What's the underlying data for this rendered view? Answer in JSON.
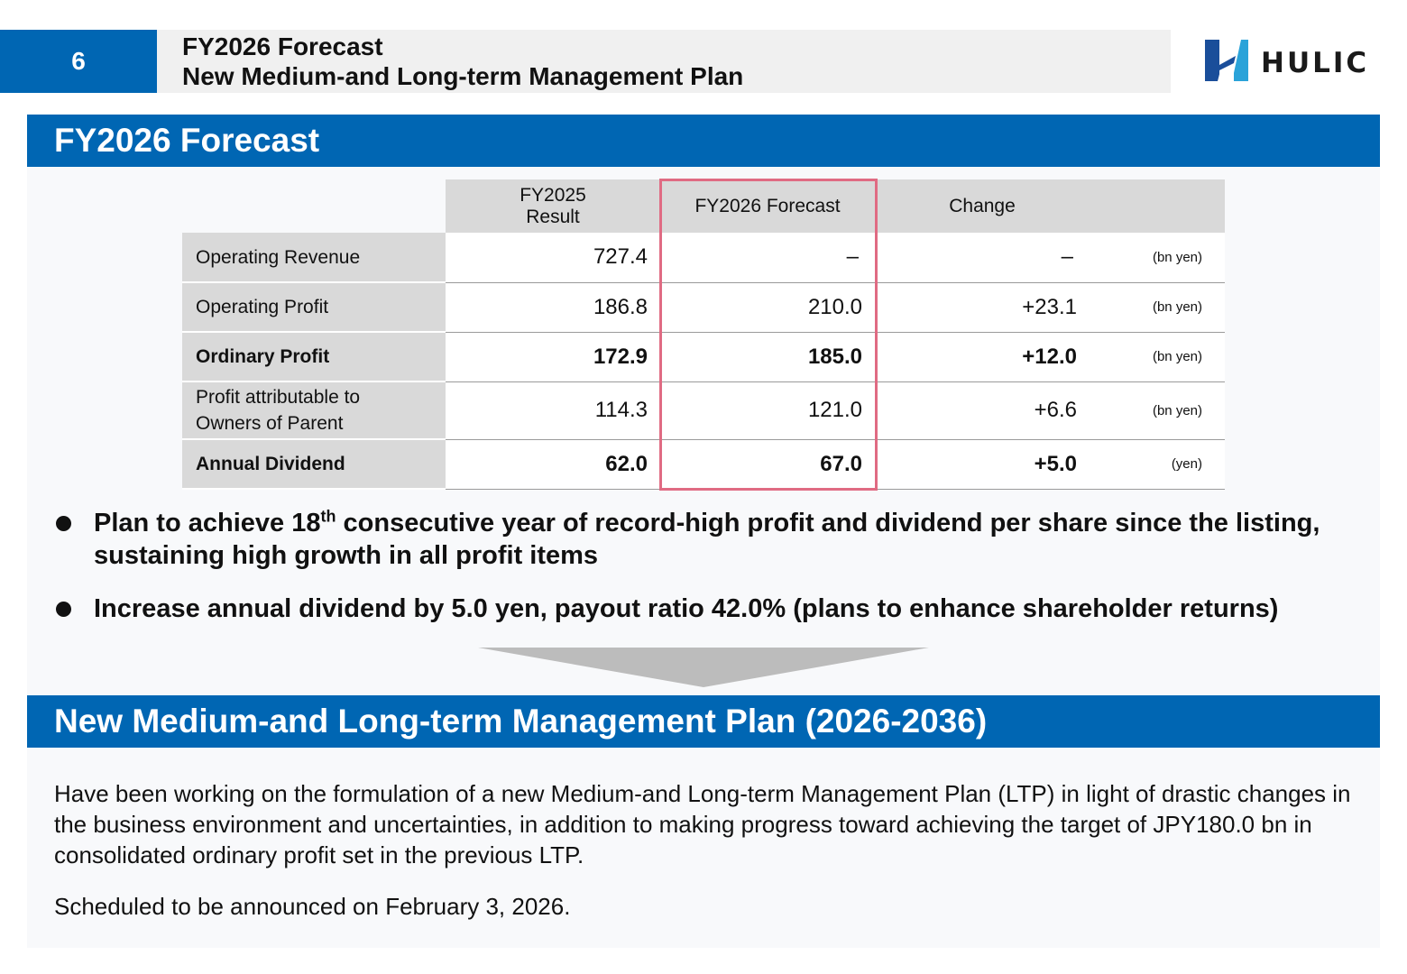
{
  "header": {
    "page_number": "6",
    "title_line1": "FY2026 Forecast",
    "title_line2": "New Medium-and Long-term Management Plan",
    "logo_text": "HULIC"
  },
  "forecast_section": {
    "heading": "FY2026 Forecast",
    "table": {
      "col1_line1": "FY2025",
      "col1_line2": "Result",
      "col2": "FY2026 Forecast",
      "col3": "Change",
      "rows": [
        {
          "label": "Operating Revenue",
          "label2": "",
          "result": "727.4",
          "forecast": "–",
          "change": "–",
          "unit": "(bn yen)"
        },
        {
          "label": "Operating Profit",
          "label2": "",
          "result": "186.8",
          "forecast": "210.0",
          "change": "+23.1",
          "unit": "(bn yen)"
        },
        {
          "label": "Ordinary Profit",
          "label2": "",
          "result": "172.9",
          "forecast": "185.0",
          "change": "+12.0",
          "unit": "(bn yen)"
        },
        {
          "label": "Profit attributable to",
          "label2": "Owners of Parent",
          "result": "114.3",
          "forecast": "121.0",
          "change": "+6.6",
          "unit": "(bn yen)"
        },
        {
          "label": "Annual Dividend",
          "label2": "",
          "result": "62.0",
          "forecast": "67.0",
          "change": "+5.0",
          "unit": "(yen)"
        }
      ]
    },
    "bullet1_pre": "Plan to achieve 18",
    "bullet1_sup": "th",
    "bullet1_post": " consecutive year of record-high profit and dividend per share since the listing, sustaining high growth in all profit items",
    "bullet2": "Increase annual dividend by 5.0 yen, payout ratio 42.0% (plans to enhance shareholder returns)"
  },
  "plan_section": {
    "heading": "New Medium-and Long-term Management Plan (2026-2036)",
    "paragraph1": "Have been working on the formulation of a new Medium-and Long-term Management Plan (LTP) in light of drastic changes in the business environment and uncertainties, in addition to making progress toward achieving the target of JPY180.0 bn in consolidated ordinary profit set in the previous LTP.",
    "paragraph2": "Scheduled to be announced on February 3, 2026."
  },
  "colors": {
    "brand_blue": "#0066b3",
    "highlight_border": "#e06b83",
    "table_header_gray": "#d9d9d9"
  }
}
